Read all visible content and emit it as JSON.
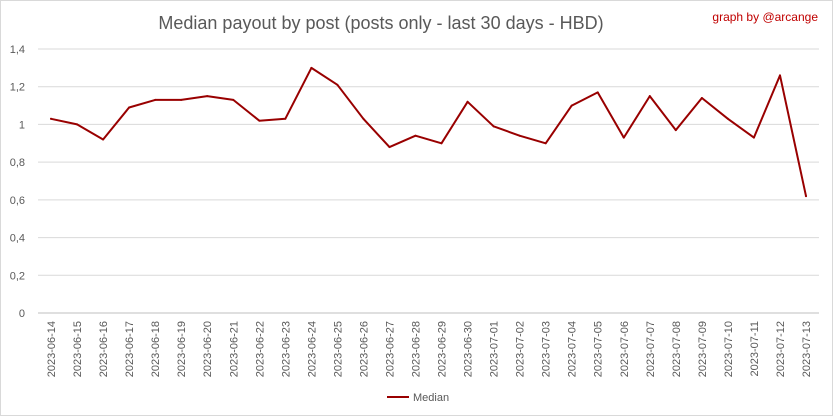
{
  "chart_data": {
    "type": "line",
    "title": "Median payout by post (posts only - last 30 days - HBD)",
    "credit": "graph by @arcange",
    "xlabel": "",
    "ylabel": "",
    "ylim": [
      0,
      1.4
    ],
    "y_ticks": [
      "0",
      "0,2",
      "0,4",
      "0,6",
      "0,8",
      "1",
      "1,2",
      "1,4"
    ],
    "y_tick_values": [
      0,
      0.2,
      0.4,
      0.6,
      0.8,
      1.0,
      1.2,
      1.4
    ],
    "grid": true,
    "legend_position": "bottom",
    "categories": [
      "2023-06-14",
      "2023-06-15",
      "2023-06-16",
      "2023-06-17",
      "2023-06-18",
      "2023-06-19",
      "2023-06-20",
      "2023-06-21",
      "2023-06-22",
      "2023-06-23",
      "2023-06-24",
      "2023-06-25",
      "2023-06-26",
      "2023-06-27",
      "2023-06-28",
      "2023-06-29",
      "2023-06-30",
      "2023-07-01",
      "2023-07-02",
      "2023-07-03",
      "2023-07-04",
      "2023-07-05",
      "2023-07-06",
      "2023-07-07",
      "2023-07-08",
      "2023-07-09",
      "2023-07-10",
      "2023-07-11",
      "2023-07-12",
      "2023-07-13"
    ],
    "series": [
      {
        "name": "Median",
        "color": "#990000",
        "values": [
          1.03,
          1.0,
          0.92,
          1.09,
          1.13,
          1.13,
          1.15,
          1.13,
          1.02,
          1.03,
          1.3,
          1.21,
          1.03,
          0.88,
          0.94,
          0.9,
          1.12,
          0.99,
          0.94,
          0.9,
          1.1,
          1.17,
          0.93,
          1.15,
          0.97,
          1.14,
          1.03,
          0.93,
          1.26,
          0.62
        ]
      }
    ]
  }
}
